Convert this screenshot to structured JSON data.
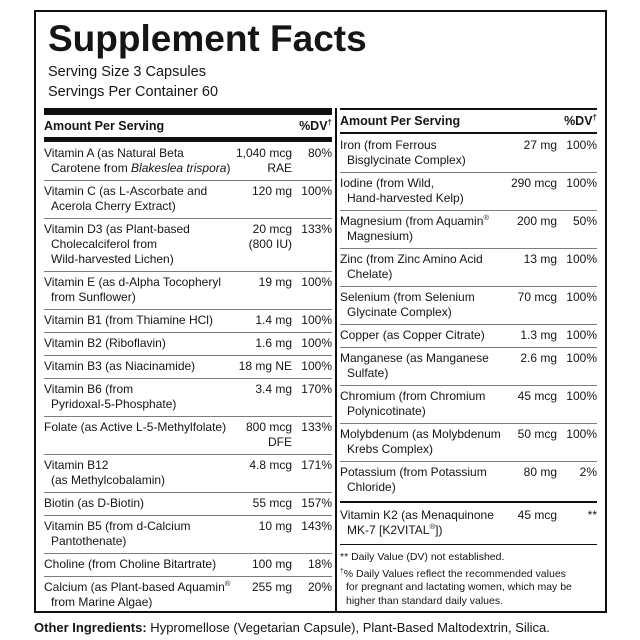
{
  "title": "Supplement Facts",
  "serving": {
    "size": "Serving Size 3 Capsules",
    "per_container": "Servings Per Container 60"
  },
  "table_header": {
    "amount": "Amount Per Serving",
    "dv": "%DV^†^"
  },
  "left_table": {
    "rows": [
      {
        "name": "Vitamin A (as Natural Beta Carotene from *Blakeslea trispora*)",
        "amount": "1,040 mcg\nRAE",
        "dv": "80%"
      },
      {
        "name": "Vitamin C (as L-Ascorbate and Acerola Cherry Extract)",
        "amount": "120 mg",
        "dv": "100%"
      },
      {
        "name": "Vitamin D3 (as Plant-based\nCholecalciferol from\nWild-harvested Lichen)",
        "amount": "20 mcg\n(800 IU)",
        "dv": "133%"
      },
      {
        "name": "Vitamin E (as d-Alpha Tocopheryl from Sunflower)",
        "amount": "19 mg",
        "dv": "100%"
      },
      {
        "name": "Vitamin B1 (from Thiamine HCl)",
        "amount": "1.4 mg",
        "dv": "100%"
      },
      {
        "name": "Vitamin B2 (Riboflavin)",
        "amount": "1.6 mg",
        "dv": "100%"
      },
      {
        "name": "Vitamin B3 (as Niacinamide)",
        "amount": "18 mg NE",
        "dv": "100%"
      },
      {
        "name": "Vitamin B6 (from\nPyridoxal-5-Phosphate)",
        "amount": "3.4 mg",
        "dv": "170%"
      },
      {
        "name": "Folate (as Active L-5-Methylfolate)",
        "amount": "800 mcg\nDFE",
        "dv": "133%"
      },
      {
        "name": "Vitamin B12\n(as Methylcobalamin)",
        "amount": "4.8 mcg",
        "dv": "171%"
      },
      {
        "name": "Biotin (as D-Biotin)",
        "amount": "55 mcg",
        "dv": "157%"
      },
      {
        "name": "Vitamin B5 (from d-Calcium Pantothenate)",
        "amount": "10 mg",
        "dv": "143%"
      },
      {
        "name": "Choline (from Choline Bitartrate)",
        "amount": "100 mg",
        "dv": "18%"
      },
      {
        "name": "Calcium (as Plant-based Aquamin^®^ from Marine Algae)",
        "amount": "255 mg",
        "dv": "20%"
      }
    ]
  },
  "right_table": {
    "rows": [
      {
        "name": "Iron (from Ferrous Bisglycinate Complex)",
        "amount": "27 mg",
        "dv": "100%"
      },
      {
        "name": "Iodine (from Wild,\nHand-harvested Kelp)",
        "amount": "290 mcg",
        "dv": "100%"
      },
      {
        "name": "Magnesium (from Aquamin^®^\nMagnesium)",
        "amount": "200 mg",
        "dv": "50%"
      },
      {
        "name": "Zinc (from Zinc Amino Acid Chelate)",
        "amount": "13 mg",
        "dv": "100%"
      },
      {
        "name": "Selenium (from Selenium Glycinate Complex)",
        "amount": "70 mcg",
        "dv": "100%"
      },
      {
        "name": "Copper (as Copper Citrate)",
        "amount": "1.3 mg",
        "dv": "100%"
      },
      {
        "name": "Manganese (as Manganese Sulfate)",
        "amount": "2.6 mg",
        "dv": "100%"
      },
      {
        "name": "Chromium (from Chromium Polynicotinate)",
        "amount": "45 mcg",
        "dv": "100%"
      },
      {
        "name": "Molybdenum (as Molybdenum Krebs Complex)",
        "amount": "50 mcg",
        "dv": "100%"
      },
      {
        "name": "Potassium (from Potassium Chloride)",
        "amount": "80 mg",
        "dv": "2%"
      }
    ],
    "k2_row": {
      "name": "Vitamin K2 (as Menaquinone\nMK-7 [K2VITAL^®^])",
      "amount": "45 mcg",
      "dv": "**"
    }
  },
  "footnotes": {
    "not_established": "** Daily Value (DV) not established.",
    "daily_values": "^†^% Daily Values reflect the recommended values\nfor pregnant and lactating women, which may be\nhigher than standard daily values."
  },
  "other_ingredients": {
    "label": "Other Ingredients:",
    "text": " Hypromellose (Vegetarian Capsule), Plant-Based Maltodextrin, Silica."
  },
  "colors": {
    "text": "#151515",
    "bar": "#0f0f0f",
    "separator": "#7d7d7d",
    "background": "#ffffff"
  }
}
